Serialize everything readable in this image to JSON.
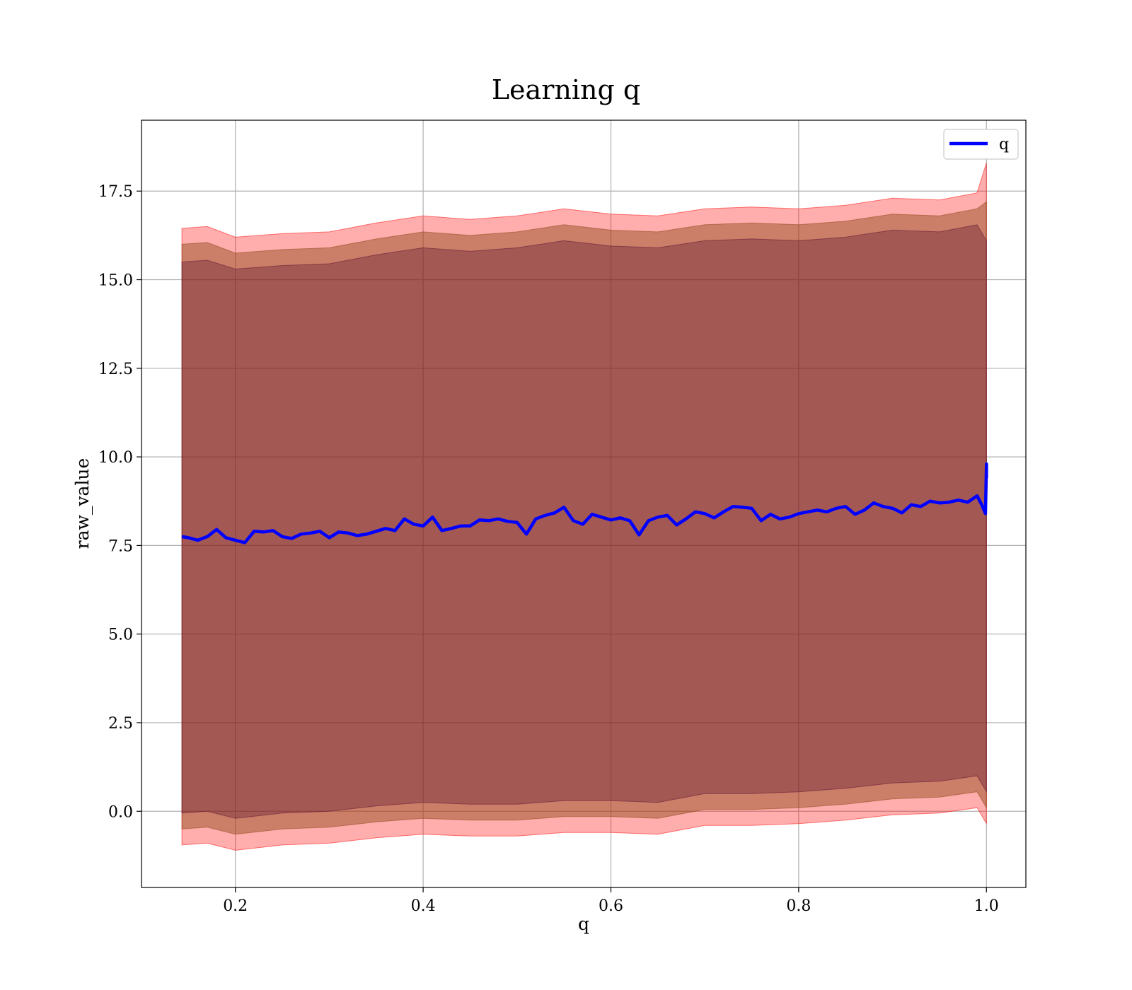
{
  "chart_data": {
    "type": "line",
    "title": "Learning q",
    "xlabel": "q",
    "ylabel": "raw_value",
    "xlim": [
      0.1,
      1.042
    ],
    "ylim": [
      -2.15,
      19.5
    ],
    "xticks": [
      0.2,
      0.4,
      0.6,
      0.8,
      1.0
    ],
    "xtick_labels": [
      "0.2",
      "0.4",
      "0.6",
      "0.8",
      "1.0"
    ],
    "yticks": [
      0.0,
      2.5,
      5.0,
      7.5,
      10.0,
      12.5,
      15.0,
      17.5
    ],
    "ytick_labels": [
      "0.0",
      "2.5",
      "5.0",
      "7.5",
      "10.0",
      "12.5",
      "15.0",
      "17.5"
    ],
    "grid": true,
    "legend": {
      "position": "top-right",
      "entries": [
        {
          "label": "q",
          "color": "#0000ff"
        }
      ]
    },
    "series": [
      {
        "name": "q",
        "color": "#0000ff",
        "x": [
          0.143,
          0.15,
          0.16,
          0.17,
          0.18,
          0.19,
          0.2,
          0.21,
          0.22,
          0.23,
          0.24,
          0.25,
          0.26,
          0.27,
          0.28,
          0.29,
          0.3,
          0.31,
          0.32,
          0.33,
          0.34,
          0.35,
          0.36,
          0.37,
          0.38,
          0.39,
          0.4,
          0.41,
          0.42,
          0.43,
          0.44,
          0.45,
          0.46,
          0.47,
          0.48,
          0.49,
          0.5,
          0.51,
          0.52,
          0.53,
          0.54,
          0.55,
          0.56,
          0.57,
          0.58,
          0.59,
          0.6,
          0.61,
          0.62,
          0.63,
          0.64,
          0.65,
          0.66,
          0.67,
          0.68,
          0.69,
          0.7,
          0.71,
          0.72,
          0.73,
          0.74,
          0.75,
          0.76,
          0.77,
          0.78,
          0.79,
          0.8,
          0.81,
          0.82,
          0.83,
          0.84,
          0.85,
          0.86,
          0.87,
          0.88,
          0.89,
          0.9,
          0.91,
          0.92,
          0.93,
          0.94,
          0.95,
          0.96,
          0.97,
          0.98,
          0.99,
          0.995,
          0.999,
          1.0,
          1.0
        ],
        "y": [
          7.75,
          7.72,
          7.65,
          7.75,
          7.95,
          7.72,
          7.65,
          7.58,
          7.9,
          7.88,
          7.92,
          7.75,
          7.7,
          7.82,
          7.85,
          7.9,
          7.72,
          7.88,
          7.85,
          7.78,
          7.82,
          7.9,
          7.98,
          7.92,
          8.25,
          8.1,
          8.05,
          8.3,
          7.92,
          7.98,
          8.05,
          8.05,
          8.22,
          8.2,
          8.25,
          8.18,
          8.15,
          7.82,
          8.25,
          8.35,
          8.42,
          8.58,
          8.2,
          8.1,
          8.38,
          8.3,
          8.22,
          8.28,
          8.2,
          7.8,
          8.2,
          8.3,
          8.35,
          8.08,
          8.25,
          8.45,
          8.4,
          8.28,
          8.45,
          8.6,
          8.58,
          8.55,
          8.2,
          8.38,
          8.25,
          8.3,
          8.4,
          8.45,
          8.5,
          8.45,
          8.55,
          8.6,
          8.38,
          8.5,
          8.7,
          8.6,
          8.55,
          8.42,
          8.65,
          8.6,
          8.75,
          8.7,
          8.72,
          8.78,
          8.72,
          8.9,
          8.65,
          8.4,
          9.8,
          9.4
        ]
      }
    ],
    "bands": [
      {
        "color": "#ff0000",
        "opacity": 0.32,
        "x": [
          0.143,
          0.17,
          0.2,
          0.25,
          0.3,
          0.35,
          0.4,
          0.45,
          0.5,
          0.55,
          0.6,
          0.65,
          0.7,
          0.75,
          0.8,
          0.85,
          0.9,
          0.95,
          0.99,
          1.0
        ],
        "upper": [
          16.45,
          16.5,
          16.2,
          16.3,
          16.35,
          16.6,
          16.8,
          16.7,
          16.8,
          17.0,
          16.85,
          16.8,
          17.0,
          17.05,
          17.0,
          17.1,
          17.3,
          17.25,
          17.45,
          18.3
        ],
        "lower": [
          -0.95,
          -0.9,
          -1.1,
          -0.95,
          -0.9,
          -0.75,
          -0.65,
          -0.7,
          -0.7,
          -0.6,
          -0.6,
          -0.65,
          -0.4,
          -0.4,
          -0.35,
          -0.25,
          -0.1,
          -0.05,
          0.1,
          -0.35
        ]
      },
      {
        "color": "#8b4513",
        "opacity": 0.45,
        "x": [
          0.143,
          0.17,
          0.2,
          0.25,
          0.3,
          0.35,
          0.4,
          0.45,
          0.5,
          0.55,
          0.6,
          0.65,
          0.7,
          0.75,
          0.8,
          0.85,
          0.9,
          0.95,
          0.99,
          1.0
        ],
        "upper": [
          16.0,
          16.05,
          15.75,
          15.85,
          15.9,
          16.15,
          16.35,
          16.25,
          16.35,
          16.55,
          16.4,
          16.35,
          16.55,
          16.6,
          16.55,
          16.65,
          16.85,
          16.8,
          17.0,
          17.2
        ],
        "lower": [
          -0.5,
          -0.45,
          -0.65,
          -0.5,
          -0.45,
          -0.3,
          -0.2,
          -0.25,
          -0.25,
          -0.15,
          -0.15,
          -0.2,
          0.05,
          0.05,
          0.1,
          0.2,
          0.35,
          0.4,
          0.55,
          0.1
        ]
      },
      {
        "color": "#5a1030",
        "opacity": 0.35,
        "x": [
          0.143,
          0.17,
          0.2,
          0.25,
          0.3,
          0.35,
          0.4,
          0.45,
          0.5,
          0.55,
          0.6,
          0.65,
          0.7,
          0.75,
          0.8,
          0.85,
          0.9,
          0.95,
          0.99,
          1.0
        ],
        "upper": [
          15.5,
          15.55,
          15.3,
          15.4,
          15.45,
          15.7,
          15.9,
          15.8,
          15.9,
          16.1,
          15.95,
          15.9,
          16.1,
          16.15,
          16.1,
          16.2,
          16.4,
          16.35,
          16.55,
          16.1
        ],
        "lower": [
          -0.05,
          0.0,
          -0.2,
          -0.05,
          0.0,
          0.15,
          0.25,
          0.2,
          0.2,
          0.3,
          0.3,
          0.25,
          0.5,
          0.5,
          0.55,
          0.65,
          0.8,
          0.85,
          1.0,
          0.55
        ]
      }
    ]
  }
}
